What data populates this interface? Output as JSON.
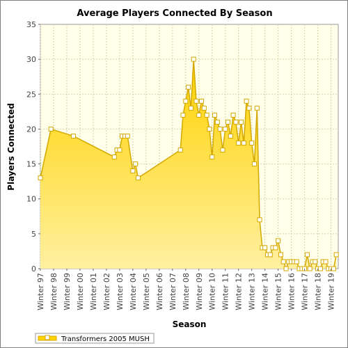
{
  "chart_data": {
    "type": "area",
    "title": "Average Players Connected By Season",
    "xlabel": "Season",
    "ylabel": "Players Connected",
    "ylim": [
      0,
      35
    ],
    "yticks": [
      0,
      5,
      10,
      15,
      20,
      25,
      30,
      35
    ],
    "grid": true,
    "legend_position": "bottom-left",
    "colors": {
      "fill_top": "#ffd200",
      "fill_bottom": "#fff0a0",
      "line": "#d4a800",
      "plot_bg": "#ffffea",
      "grid": "#d2d2a8"
    },
    "x_tick_labels": [
      "Winter 97",
      "Winter 98",
      "Winter 99",
      "Winter 00",
      "Winter 01",
      "Winter 02",
      "Winter 03",
      "Winter 04",
      "Winter 05",
      "Winter 06",
      "Winter 07",
      "Winter 08",
      "Winter 09",
      "Winter 10",
      "Winter 11",
      "Winter 12",
      "Winter 13",
      "Winter 14",
      "Winter 15",
      "Winter 16",
      "Winter 17",
      "Winter 18",
      "Winter 19"
    ],
    "series": [
      {
        "name": "Transformers 2005 MUSH",
        "x": [
          0,
          0.8,
          2.5,
          5.6,
          5.8,
          6.0,
          6.2,
          6.4,
          6.6,
          7.0,
          7.2,
          7.4,
          10.6,
          10.8,
          11.0,
          11.2,
          11.4,
          11.6,
          11.8,
          12.0,
          12.2,
          12.4,
          12.6,
          12.8,
          13.0,
          13.2,
          13.4,
          13.6,
          13.8,
          14.0,
          14.2,
          14.4,
          14.6,
          14.8,
          15.0,
          15.2,
          15.4,
          15.6,
          15.8,
          16.0,
          16.2,
          16.4,
          16.6,
          16.8,
          17.0,
          17.2,
          17.4,
          17.6,
          17.8,
          18.0,
          18.2,
          18.4,
          18.6,
          18.8,
          19.0,
          19.2,
          19.4,
          19.6,
          19.8,
          20.0,
          20.2,
          20.4,
          20.6,
          20.8,
          21.0,
          21.2,
          21.4,
          21.6,
          21.8,
          22.0,
          22.2,
          22.4
        ],
        "values": [
          13,
          20,
          19,
          16,
          17,
          17,
          19,
          19,
          19,
          14,
          15,
          13,
          17,
          22,
          24,
          26,
          23,
          30,
          24,
          22,
          24,
          23,
          22,
          20,
          16,
          22,
          21,
          20,
          17,
          20,
          21,
          19,
          22,
          21,
          18,
          21,
          18,
          24,
          23,
          18,
          15,
          23,
          7,
          3,
          3,
          2,
          2,
          3,
          3,
          4,
          2,
          1,
          0,
          1,
          1,
          1,
          1,
          0,
          0,
          0,
          2,
          0,
          1,
          1,
          0,
          0,
          1,
          1,
          0,
          0,
          0,
          2
        ]
      }
    ]
  }
}
